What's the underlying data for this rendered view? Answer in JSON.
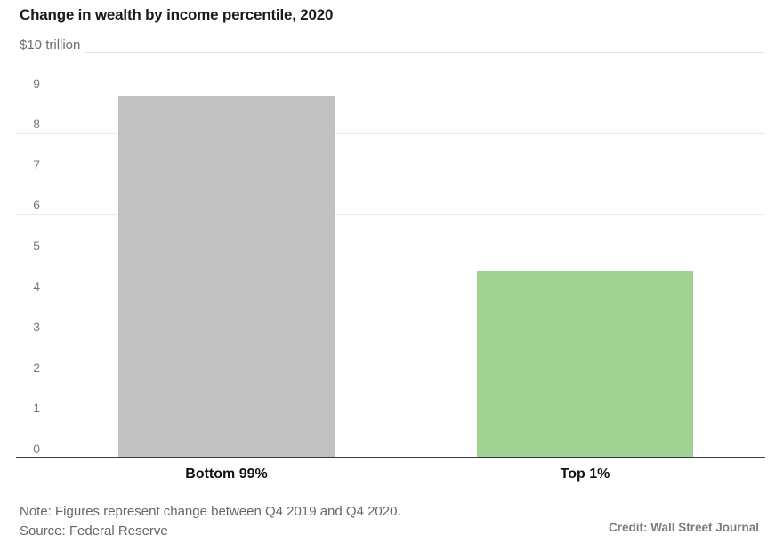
{
  "header": {
    "title": "Change in wealth by income percentile, 2020"
  },
  "chart_data": {
    "type": "bar",
    "title": "Change in wealth by income percentile, 2020",
    "unit_label": "$10 trillion",
    "categories": [
      "Bottom 99%",
      "Top 1%"
    ],
    "values": [
      8.9,
      4.6
    ],
    "bar_colors": [
      "#c1c1c1",
      "#a0d294"
    ],
    "xlabel": "",
    "ylabel": "$10 trillion",
    "ylim": [
      0,
      10
    ],
    "yticks": [
      0,
      1,
      2,
      3,
      4,
      5,
      6,
      7,
      8,
      9
    ],
    "top_tick_value": 10,
    "top_tick_label": "$10 trillion",
    "grid": "horizontal",
    "legend": "none"
  },
  "footer": {
    "note": "Note: Figures represent change between Q4 2019 and Q4 2020.",
    "source": "Source: Federal Reserve",
    "credit": "Credit: Wall Street Journal"
  },
  "colors": {
    "background": "#ffffff",
    "bar_gray": "#c1c1c1",
    "bar_green": "#a0d294",
    "gridline": "#e8e8e8",
    "baseline": "#3a3a3a",
    "tick_text": "#7a7a7a",
    "title_text": "#1b1b1b",
    "note_text": "#666666"
  }
}
